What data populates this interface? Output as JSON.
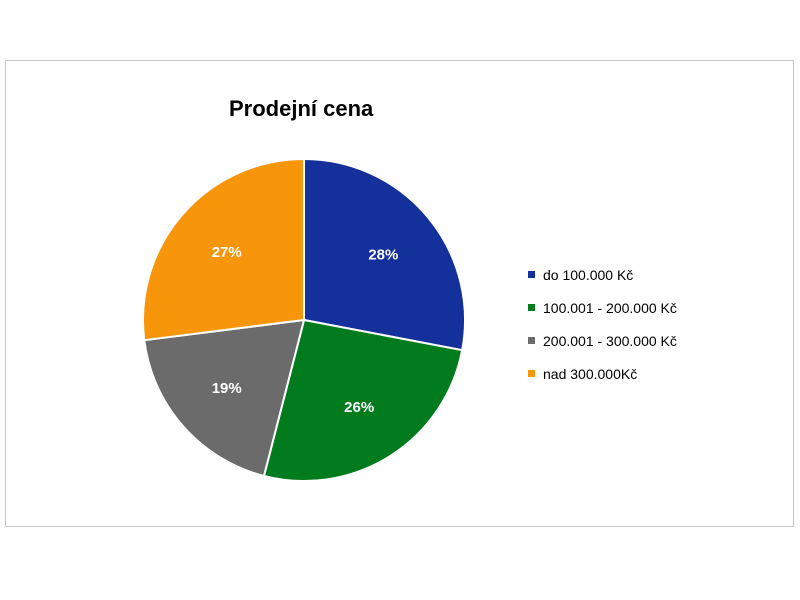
{
  "chart_data": {
    "type": "pie",
    "title": "Prodejní cena",
    "categories": [
      "do 100.000 Kč",
      "100.001 - 200.000 Kč",
      "200.001 - 300.000 Kč",
      "nad 300.000Kč"
    ],
    "values": [
      28,
      26,
      19,
      27
    ],
    "labels": [
      "28%",
      "26%",
      "19%",
      "27%"
    ],
    "colors": [
      "#14309a",
      "#027a1e",
      "#6b6b6b",
      "#f7960b"
    ],
    "legend": "right"
  }
}
